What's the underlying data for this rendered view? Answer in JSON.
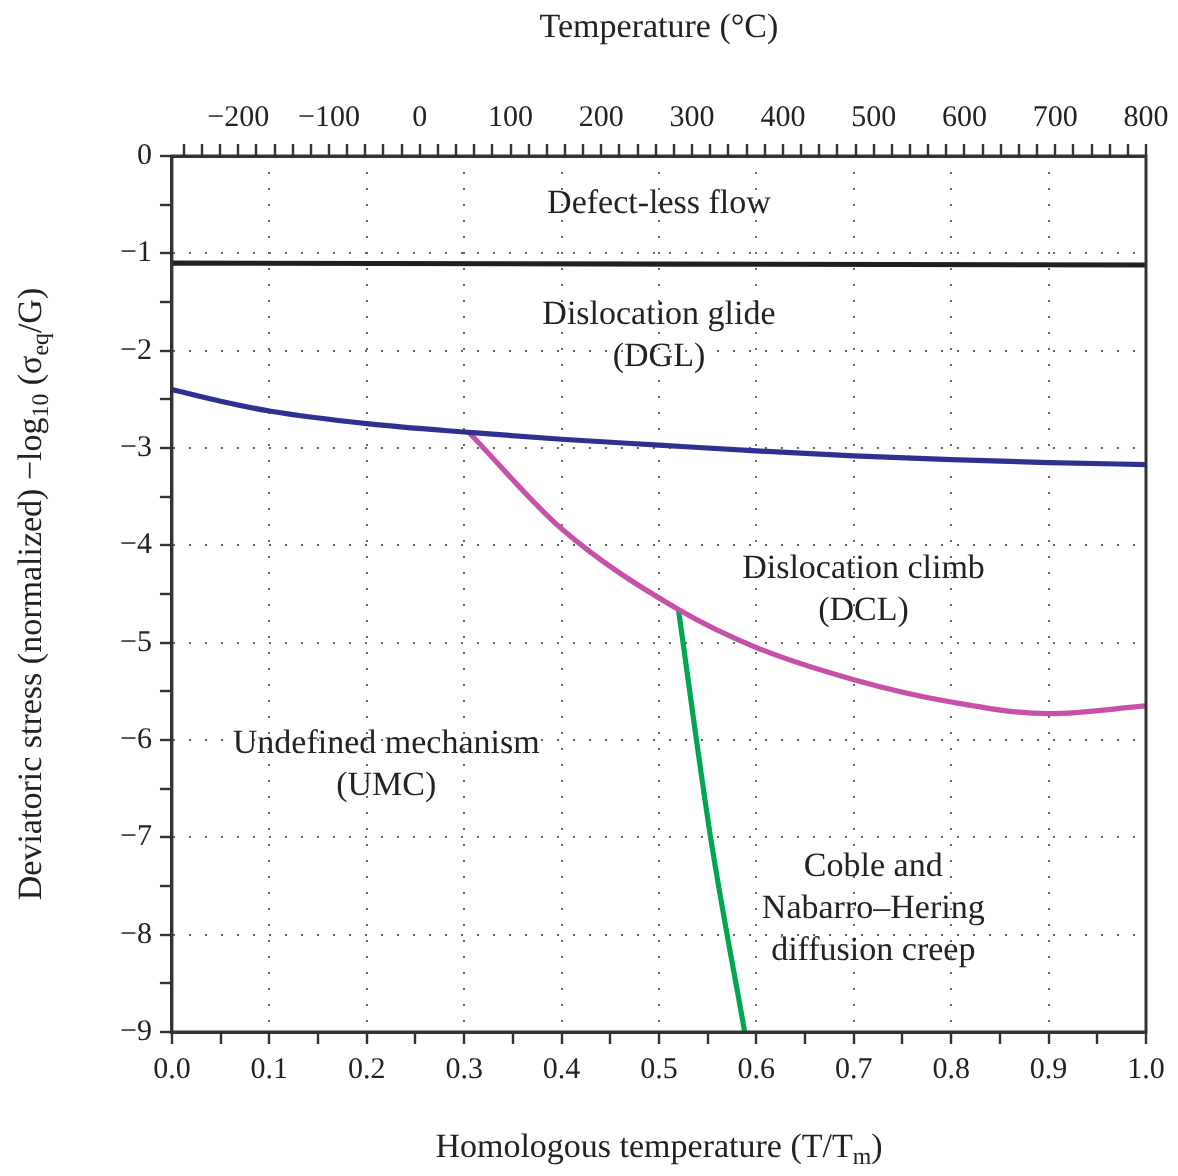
{
  "chart_data": {
    "type": "line",
    "xlabel": "Homologous temperature (T/T$_{m}$)",
    "ylabel": "Deviatoric stress (normalized) −log$_{10}$ (σ$_{eq}$/G)",
    "x2label": "Temperature (°C)",
    "xlim": [
      0,
      1
    ],
    "ylim": [
      -9,
      0
    ],
    "x2lim": [
      -273,
      800
    ],
    "xticks": [
      {
        "value": 0,
        "label": "0.0"
      },
      {
        "value": 0.05,
        "label": null
      },
      0.1,
      {
        "value": 0.15,
        "label": null
      },
      0.2,
      {
        "value": 0.25,
        "label": null
      },
      0.3,
      {
        "value": 0.35,
        "label": null
      },
      0.4,
      {
        "value": 0.45,
        "label": null
      },
      0.5,
      {
        "value": 0.55,
        "label": null
      },
      0.6,
      {
        "value": 0.65,
        "label": null
      },
      0.7,
      {
        "value": 0.75,
        "label": null
      },
      0.8,
      {
        "value": 0.85,
        "label": null
      },
      0.9,
      {
        "value": 0.95,
        "label": null
      },
      {
        "value": 1,
        "label": "1.0"
      }
    ],
    "yticks": [
      -9,
      {
        "value": -8.5,
        "label": null
      },
      -8,
      {
        "value": -7.5,
        "label": null
      },
      -7,
      {
        "value": -6.5,
        "label": null
      },
      -6,
      {
        "value": -5.5,
        "label": null
      },
      -5,
      {
        "value": -4.5,
        "label": null
      },
      -4,
      {
        "value": -3.5,
        "label": null
      },
      -3,
      {
        "value": -2.5,
        "label": null
      },
      -2,
      {
        "value": -1.5,
        "label": null
      },
      -1,
      {
        "value": -0.5,
        "label": null
      },
      0
    ],
    "x2ticks": [
      {
        "value": -260,
        "label": null
      },
      {
        "value": -240,
        "label": null
      },
      {
        "value": -220,
        "label": null
      },
      {
        "value": -200,
        "label": "−200"
      },
      {
        "value": -180,
        "label": null
      },
      {
        "value": -160,
        "label": null
      },
      {
        "value": -140,
        "label": null
      },
      {
        "value": -120,
        "label": null
      },
      {
        "value": -100,
        "label": "−100"
      },
      {
        "value": -80,
        "label": null
      },
      {
        "value": -60,
        "label": null
      },
      {
        "value": -40,
        "label": null
      },
      {
        "value": -20,
        "label": null
      },
      0,
      {
        "value": 20,
        "label": null
      },
      {
        "value": 40,
        "label": null
      },
      {
        "value": 60,
        "label": null
      },
      {
        "value": 80,
        "label": null
      },
      100,
      {
        "value": 120,
        "label": null
      },
      {
        "value": 140,
        "label": null
      },
      {
        "value": 160,
        "label": null
      },
      {
        "value": 180,
        "label": null
      },
      200,
      {
        "value": 220,
        "label": null
      },
      {
        "value": 240,
        "label": null
      },
      {
        "value": 260,
        "label": null
      },
      {
        "value": 280,
        "label": null
      },
      300,
      {
        "value": 320,
        "label": null
      },
      {
        "value": 340,
        "label": null
      },
      {
        "value": 360,
        "label": null
      },
      {
        "value": 380,
        "label": null
      },
      400,
      {
        "value": 420,
        "label": null
      },
      {
        "value": 440,
        "label": null
      },
      {
        "value": 460,
        "label": null
      },
      {
        "value": 480,
        "label": null
      },
      500,
      {
        "value": 520,
        "label": null
      },
      {
        "value": 540,
        "label": null
      },
      {
        "value": 560,
        "label": null
      },
      {
        "value": 580,
        "label": null
      },
      600,
      {
        "value": 620,
        "label": null
      },
      {
        "value": 640,
        "label": null
      },
      {
        "value": 660,
        "label": null
      },
      {
        "value": 680,
        "label": null
      },
      700,
      {
        "value": 720,
        "label": null
      },
      {
        "value": 740,
        "label": null
      },
      {
        "value": 760,
        "label": null
      },
      {
        "value": 780,
        "label": null
      },
      800
    ],
    "grid": true,
    "marker": "none",
    "line_style": "solid",
    "series": [
      {
        "color": "#231f20",
        "x": [
          0,
          1
        ],
        "values": [
          -1.1,
          -1.12
        ]
      },
      {
        "color": "#2e3192",
        "x": [
          0,
          0.05,
          0.1,
          0.2,
          0.305,
          0.4,
          0.5,
          0.6,
          0.7,
          0.8,
          0.9,
          1
        ],
        "values": [
          -2.4,
          -2.52,
          -2.62,
          -2.75,
          -2.84,
          -2.91,
          -2.97,
          -3.03,
          -3.08,
          -3.12,
          -3.15,
          -3.17
        ]
      },
      {
        "color": "#c751a9",
        "x": [
          0.305,
          0.4,
          0.52,
          0.6,
          0.7,
          0.8,
          0.9,
          1
        ],
        "values": [
          -2.84,
          -3.83,
          -4.66,
          -5.05,
          -5.38,
          -5.61,
          -5.73,
          -5.65
        ]
      },
      {
        "color": "#00a651",
        "x": [
          0.52,
          0.553,
          0.588
        ],
        "values": [
          -4.66,
          -7,
          -9
        ]
      }
    ],
    "annotations": [
      "Defect-less flow",
      "Dislocation glide\n(DGL)",
      "Dislocation climb\n(DCL)",
      "Undefined mechanism\n(UMC)",
      "Coble and\nNabarro–Hering\ndiffusion creep"
    ]
  }
}
